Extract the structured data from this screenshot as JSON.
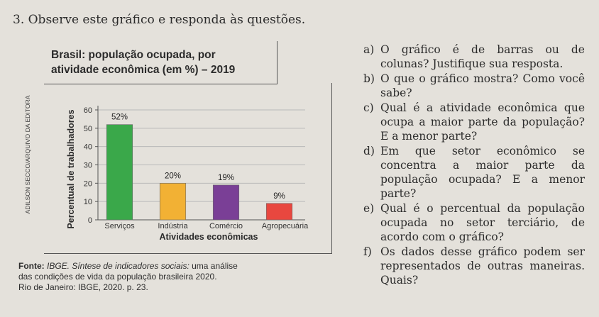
{
  "question_title": "3. Observe este gráfico e responda às questões.",
  "chart_title_line1": "Brasil: população ocupada, por",
  "chart_title_line2": "atividade econômica (em %) – 2019",
  "side_credit": "ADILSON SECCO/ARQUIVO DA EDITORA",
  "source": {
    "label": "Fonte:",
    "italic": "IBGE. Síntese de indicadores sociais:",
    "line1_rest": "uma análise",
    "line2": "das condições de vida da população brasileira 2020.",
    "line3": "Rio de Janeiro: IBGE, 2020. p. 23."
  },
  "questions": [
    {
      "letter": "a)",
      "text": "O gráfico é de barras ou de colunas? Justifique sua resposta."
    },
    {
      "letter": "b)",
      "text": "O que o gráfico mostra? Como você sabe?"
    },
    {
      "letter": "c)",
      "text": "Qual é a atividade econômica que ocupa a maior parte da população? E a menor parte?"
    },
    {
      "letter": "d)",
      "text": "Em que setor econômico se concentra a maior parte da população ocupada? E a menor parte?"
    },
    {
      "letter": "e)",
      "text": "Qual é o percentual da população ocupada no setor terciário, de acordo com o gráfico?"
    },
    {
      "letter": "f)",
      "text": "Os dados desse gráfico podem ser representados de outras maneiras. Quais?"
    }
  ],
  "chart_data": {
    "type": "bar",
    "title": "Brasil: população ocupada, por atividade econômica (em %) – 2019",
    "categories": [
      "Serviços",
      "Indústria",
      "Comércio",
      "Agropecuária"
    ],
    "values": [
      52,
      20,
      19,
      9
    ],
    "data_labels": [
      "52%",
      "20%",
      "19%",
      "9%"
    ],
    "colors": [
      "#3aa84a",
      "#f2b134",
      "#7a3f96",
      "#e8473f"
    ],
    "xlabel": "Atividades econômicas",
    "ylabel": "Percentual de trabalhadores",
    "ylim": [
      0,
      60
    ],
    "yticks": [
      0,
      10,
      20,
      30,
      40,
      50,
      60
    ],
    "grid": true
  }
}
